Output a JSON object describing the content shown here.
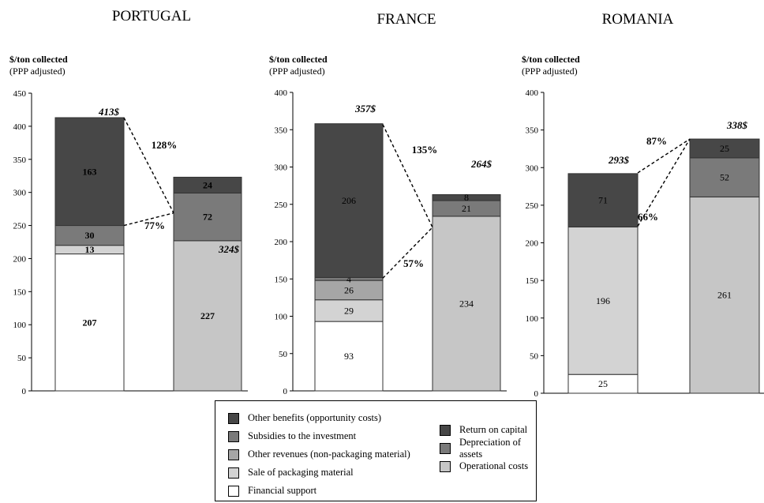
{
  "colors": {
    "other_benefits": "#474747",
    "subsidies": "#7a7a7a",
    "other_revenues": "#a6a6a6",
    "sale_packaging": "#d3d3d3",
    "financial_support": "#ffffff",
    "return_on_capital": "#474747",
    "depreciation": "#7a7a7a",
    "operational_costs": "#c6c6c6"
  },
  "legend": {
    "left": [
      {
        "key": "other_benefits",
        "label": "Other benefits (opportunity costs)"
      },
      {
        "key": "subsidies",
        "label": "Subsidies to the investment"
      },
      {
        "key": "other_revenues",
        "label": "Other revenues (non-packaging material)"
      },
      {
        "key": "sale_packaging",
        "label": "Sale of packaging material"
      },
      {
        "key": "financial_support",
        "label": "Financial support"
      }
    ],
    "right": [
      {
        "key": "return_on_capital",
        "label": "Return on capital"
      },
      {
        "key": "depreciation",
        "label": "Depreciation of assets"
      },
      {
        "key": "operational_costs",
        "label": "Operational costs"
      }
    ]
  },
  "chart_data": [
    {
      "type": "bar",
      "title": "PORTUGAL",
      "ylabel": "$/ton collected",
      "ylabel_sub": "(PPP adjusted)",
      "ylim": [
        0,
        450
      ],
      "yticks": [
        0,
        50,
        100,
        150,
        200,
        250,
        300,
        350,
        400,
        450
      ],
      "bars": [
        {
          "total": 413,
          "total_label": "413$",
          "segments": [
            {
              "key": "financial_support",
              "value": 207,
              "label": "207"
            },
            {
              "key": "sale_packaging",
              "value": 13,
              "label": "13"
            },
            {
              "key": "subsidies",
              "value": 30,
              "label": "30"
            },
            {
              "key": "other_benefits",
              "value": 163,
              "label": "163"
            }
          ]
        },
        {
          "total": 324,
          "total_label": "324$",
          "segments": [
            {
              "key": "operational_costs",
              "value": 227,
              "label": "227"
            },
            {
              "key": "depreciation",
              "value": 72,
              "label": "72"
            },
            {
              "key": "return_on_capital",
              "value": 24,
              "label": "24"
            }
          ]
        }
      ],
      "ratios": {
        "top": "128%",
        "bottom": "77%"
      }
    },
    {
      "type": "bar",
      "title": "FRANCE",
      "ylabel": "$/ton collected",
      "ylabel_sub": "(PPP adjusted)",
      "ylim": [
        0,
        400
      ],
      "yticks": [
        0,
        50,
        100,
        150,
        200,
        250,
        300,
        350,
        400
      ],
      "bars": [
        {
          "total": 357,
          "total_label": "357$",
          "segments": [
            {
              "key": "financial_support",
              "value": 93,
              "label": "93"
            },
            {
              "key": "sale_packaging",
              "value": 29,
              "label": "29"
            },
            {
              "key": "other_revenues",
              "value": 26,
              "label": "26"
            },
            {
              "key": "subsidies",
              "value": 4,
              "label": "4"
            },
            {
              "key": "other_benefits",
              "value": 206,
              "label": "206"
            }
          ]
        },
        {
          "total": 264,
          "total_label": "264$",
          "segments": [
            {
              "key": "operational_costs",
              "value": 234,
              "label": "234"
            },
            {
              "key": "depreciation",
              "value": 21,
              "label": "21"
            },
            {
              "key": "return_on_capital",
              "value": 8,
              "label": "8"
            }
          ]
        }
      ],
      "ratios": {
        "top": "135%",
        "bottom": "57%"
      }
    },
    {
      "type": "bar",
      "title": "ROMANIA",
      "ylabel": "$/ton collected",
      "ylabel_sub": "(PPP adjusted)",
      "ylim": [
        0,
        400
      ],
      "yticks": [
        0,
        50,
        100,
        150,
        200,
        250,
        300,
        350,
        400
      ],
      "bars": [
        {
          "total": 293,
          "total_label": "293$",
          "segments": [
            {
              "key": "financial_support",
              "value": 25,
              "label": "25"
            },
            {
              "key": "sale_packaging",
              "value": 196,
              "label": "196"
            },
            {
              "key": "other_benefits",
              "value": 71,
              "label": "71"
            }
          ]
        },
        {
          "total": 338,
          "total_label": "338$",
          "segments": [
            {
              "key": "operational_costs",
              "value": 261,
              "label": "261"
            },
            {
              "key": "depreciation",
              "value": 52,
              "label": "52"
            },
            {
              "key": "return_on_capital",
              "value": 25,
              "label": "25"
            }
          ]
        }
      ],
      "ratios": {
        "top": "87%",
        "bottom": "66%"
      }
    }
  ]
}
